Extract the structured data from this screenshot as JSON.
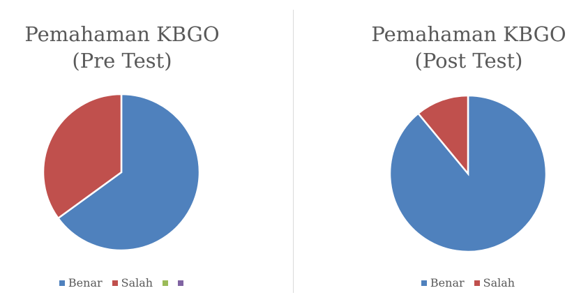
{
  "chart_data": [
    {
      "type": "pie",
      "title": "Pemahaman KBGO (Pre Test)",
      "categories": [
        "Benar",
        "Salah",
        null,
        null
      ],
      "values": [
        65,
        35,
        0,
        0
      ],
      "colors": [
        "#4f81bd",
        "#c0504d",
        "#9bbb59",
        "#8064a2"
      ],
      "legend": "bottom"
    },
    {
      "type": "pie",
      "title": "Pemahaman KBGO (Post Test)",
      "categories": [
        "Benar",
        "Salah"
      ],
      "values": [
        89,
        11
      ],
      "colors": [
        "#4f81bd",
        "#c0504d"
      ],
      "legend": "bottom"
    }
  ]
}
